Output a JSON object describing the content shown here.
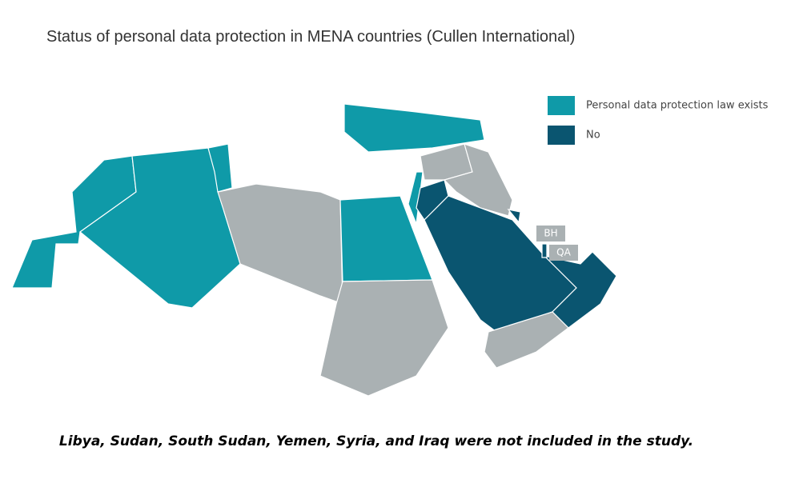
{
  "title": "Status of personal data protection in MENA countries (Cullen International)",
  "legend": [
    {
      "label": "Personal data protection law exists",
      "color": "#0f9aa8"
    },
    {
      "label": "No",
      "color": "#0a5570"
    }
  ],
  "map_labels": [
    "BH",
    "QA"
  ],
  "footnote": "Libya, Sudan, South Sudan, Yemen, Syria, and Iraq were not included in the study."
}
